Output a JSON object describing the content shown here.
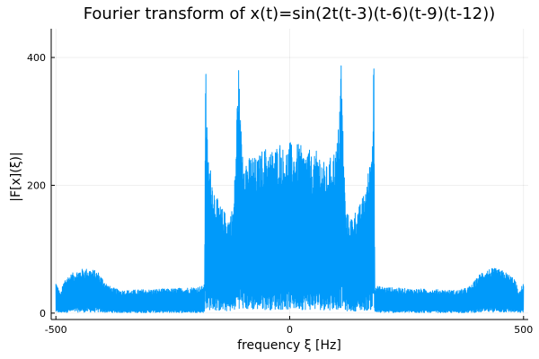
{
  "chart_data": {
    "type": "line",
    "title": "Fourier transform of x(t)=sin(2t(t-3)(t-6)(t-9)(t-12))",
    "xlabel": "frequency ξ [Hz]",
    "ylabel": "|F[x](ξ)|",
    "xlim": [
      -510,
      510
    ],
    "ylim": [
      -10,
      445
    ],
    "xticks": [
      {
        "value": -500,
        "label": "-500"
      },
      {
        "value": 0,
        "label": "0"
      },
      {
        "value": 500,
        "label": "500"
      }
    ],
    "yticks": [
      {
        "value": 0,
        "label": "0"
      },
      {
        "value": 200,
        "label": "200"
      },
      {
        "value": 400,
        "label": "400"
      }
    ],
    "grid": true,
    "legend": "none",
    "series": [
      {
        "color": "#009AFA",
        "x": [
          -500,
          -495,
          -490,
          -485,
          -480,
          -470,
          -460,
          -450,
          -440,
          -430,
          -420,
          -410,
          -400,
          -390,
          -380,
          -370,
          -360,
          -340,
          -320,
          -300,
          -280,
          -260,
          -240,
          -220,
          -200,
          -190,
          -185,
          -182,
          -180,
          -178,
          -175,
          -170,
          -165,
          -160,
          -150,
          -140,
          -130,
          -120,
          -115,
          -110,
          -105,
          -100,
          -90,
          -80,
          -70,
          -60,
          -50,
          -40,
          -30,
          -20,
          -10,
          0,
          10,
          20,
          30,
          40,
          50,
          60,
          70,
          80,
          90,
          100,
          105,
          110,
          115,
          120,
          130,
          140,
          150,
          160,
          165,
          170,
          175,
          178,
          180,
          182,
          185,
          190,
          200,
          220,
          240,
          260,
          280,
          300,
          320,
          340,
          360,
          370,
          380,
          390,
          400,
          410,
          420,
          430,
          440,
          450,
          460,
          470,
          480,
          485,
          490,
          495,
          500
        ],
        "y": [
          50,
          40,
          30,
          45,
          55,
          60,
          65,
          68,
          70,
          70,
          68,
          65,
          55,
          45,
          40,
          38,
          36,
          36,
          37,
          37,
          38,
          38,
          39,
          40,
          41,
          42,
          43,
          45,
          430,
          320,
          250,
          230,
          210,
          190,
          170,
          160,
          150,
          170,
          260,
          405,
          300,
          260,
          240,
          250,
          240,
          255,
          260,
          255,
          260,
          270,
          250,
          270,
          255,
          270,
          250,
          260,
          240,
          260,
          240,
          230,
          250,
          260,
          300,
          405,
          260,
          160,
          150,
          160,
          170,
          190,
          210,
          230,
          260,
          320,
          430,
          45,
          43,
          42,
          41,
          40,
          39,
          38,
          38,
          37,
          37,
          36,
          36,
          38,
          40,
          45,
          55,
          65,
          68,
          70,
          70,
          68,
          65,
          60,
          55,
          45,
          30,
          40,
          50
        ]
      }
    ]
  }
}
